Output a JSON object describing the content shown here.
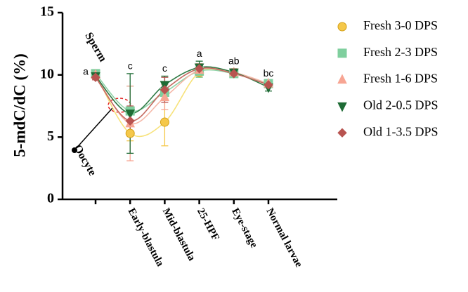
{
  "chart_data": {
    "type": "line",
    "y_label": "5-mdC/dC (%)",
    "categories": [
      null,
      "Early-blastula",
      "Mid-blastula",
      "25-HPF",
      "Eye-stage",
      "Normal larvae"
    ],
    "ylim": [
      0,
      15
    ],
    "yticks": [
      0,
      5,
      10,
      15
    ],
    "smooth": true,
    "annotations": [
      "Sperm",
      "Oocyte"
    ],
    "group_labels": [
      "a",
      "c",
      "c",
      "a",
      "ab",
      "bc"
    ],
    "series": [
      {
        "name": "Fresh 3-0 DPS",
        "color": "#f5c84a",
        "line_color": "#f7e27a",
        "marker": "circle",
        "values": [
          10.1,
          5.3,
          6.2,
          10.2,
          10.1,
          9.3
        ],
        "errors": [
          0.3,
          0.6,
          1.9,
          0.4,
          0.2,
          0.2
        ]
      },
      {
        "name": "Fresh 2-3 DPS",
        "color": "#7fcf9e",
        "line_color": "#8fd3a8",
        "marker": "square",
        "values": [
          10.1,
          7.1,
          8.6,
          10.3,
          10.1,
          9.3
        ],
        "errors": [
          0.2,
          2.0,
          0.6,
          0.5,
          0.2,
          0.2
        ]
      },
      {
        "name": "Fresh 1-6 DPS",
        "color": "#f7a593",
        "line_color": "#f5b8a8",
        "marker": "triangle-up",
        "values": [
          10.0,
          6.1,
          8.2,
          10.4,
          10.2,
          9.3
        ],
        "errors": [
          0.2,
          3.0,
          1.0,
          0.5,
          0.3,
          0.2
        ]
      },
      {
        "name": "Old 2-0.5 DPS",
        "color": "#1e6b35",
        "line_color": "#2f7a45",
        "marker": "triangle-down",
        "values": [
          9.9,
          6.9,
          9.2,
          10.6,
          10.2,
          9.0
        ],
        "errors": [
          0.2,
          3.2,
          0.7,
          0.5,
          0.2,
          0.3
        ]
      },
      {
        "name": "Old 1-3.5 DPS",
        "color": "#b85450",
        "line_color": "#c46a60",
        "marker": "diamond",
        "values": [
          9.8,
          6.3,
          8.8,
          10.5,
          10.1,
          9.2
        ],
        "errors": [
          0.2,
          1.2,
          1.0,
          0.3,
          0.2,
          0.2
        ]
      }
    ]
  }
}
